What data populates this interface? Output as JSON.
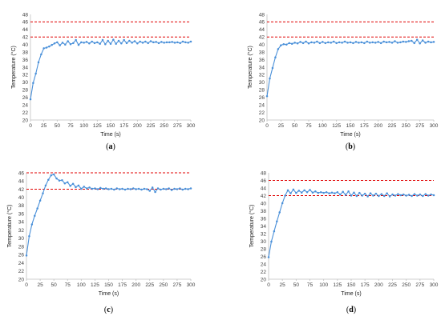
{
  "colors": {
    "series": "#4a90d9",
    "threshold": "#e00000",
    "axis": "#bfbfbf"
  },
  "chart_data": [
    {
      "type": "line",
      "panel_label": "(a)",
      "xlabel": "Time (s)",
      "ylabel": "Temperature (°C)",
      "xlim": [
        0,
        300
      ],
      "ylim": [
        20,
        48
      ],
      "xticks": [
        0,
        25,
        50,
        75,
        100,
        125,
        150,
        175,
        200,
        225,
        250,
        275,
        300
      ],
      "yticks": [
        20,
        22,
        24,
        26,
        28,
        30,
        32,
        34,
        36,
        38,
        40,
        42,
        44,
        46,
        48
      ],
      "thresholds": [
        42,
        46
      ],
      "x": [
        0,
        5,
        10,
        15,
        20,
        25,
        30,
        35,
        40,
        45,
        50,
        55,
        60,
        65,
        70,
        75,
        80,
        85,
        90,
        95,
        100,
        105,
        110,
        115,
        120,
        125,
        130,
        135,
        140,
        145,
        150,
        155,
        160,
        165,
        170,
        175,
        180,
        185,
        190,
        195,
        200,
        205,
        210,
        215,
        220,
        225,
        230,
        235,
        240,
        245,
        250,
        255,
        260,
        265,
        270,
        275,
        280,
        285,
        290,
        295,
        300
      ],
      "y": [
        25.5,
        29.8,
        32.3,
        35.3,
        37.4,
        39.0,
        39.2,
        39.5,
        39.9,
        40.3,
        40.6,
        39.8,
        40.5,
        40.0,
        40.9,
        40.1,
        40.4,
        41.2,
        39.9,
        40.6,
        40.5,
        40.7,
        40.3,
        40.8,
        40.4,
        40.6,
        40.2,
        41.2,
        40.1,
        41.0,
        40.2,
        41.3,
        40.2,
        41.0,
        40.3,
        41.2,
        40.4,
        41.0,
        40.5,
        40.9,
        40.3,
        40.8,
        40.5,
        40.8,
        40.4,
        40.9,
        40.6,
        40.7,
        40.4,
        40.7,
        40.5,
        40.6,
        40.6,
        40.7,
        40.5,
        40.6,
        40.4,
        40.8,
        40.6,
        40.5,
        40.8
      ]
    },
    {
      "type": "line",
      "panel_label": "(b)",
      "xlabel": "Time (s)",
      "ylabel": "Temperature (°C)",
      "xlim": [
        0,
        300
      ],
      "ylim": [
        20,
        48
      ],
      "xticks": [
        0,
        25,
        50,
        75,
        100,
        125,
        150,
        175,
        200,
        225,
        250,
        275,
        300
      ],
      "yticks": [
        20,
        22,
        24,
        26,
        28,
        30,
        32,
        34,
        36,
        38,
        40,
        42,
        44,
        46,
        48
      ],
      "thresholds": [
        42,
        46
      ],
      "x": [
        0,
        5,
        10,
        15,
        20,
        25,
        30,
        35,
        40,
        45,
        50,
        55,
        60,
        65,
        70,
        75,
        80,
        85,
        90,
        95,
        100,
        105,
        110,
        115,
        120,
        125,
        130,
        135,
        140,
        145,
        150,
        155,
        160,
        165,
        170,
        175,
        180,
        185,
        190,
        195,
        200,
        205,
        210,
        215,
        220,
        225,
        230,
        235,
        240,
        245,
        250,
        255,
        260,
        265,
        270,
        275,
        280,
        285,
        290,
        295,
        300
      ],
      "y": [
        26.3,
        31.0,
        33.8,
        36.6,
        38.8,
        39.8,
        40.1,
        40.0,
        40.4,
        40.2,
        40.5,
        40.3,
        40.7,
        40.4,
        40.8,
        40.3,
        40.6,
        40.5,
        40.8,
        40.4,
        40.7,
        40.4,
        40.6,
        40.5,
        40.8,
        40.4,
        40.6,
        40.5,
        40.8,
        40.5,
        40.6,
        40.4,
        40.7,
        40.5,
        40.6,
        40.4,
        40.8,
        40.5,
        40.6,
        40.5,
        40.7,
        40.4,
        40.8,
        40.6,
        40.7,
        40.5,
        40.9,
        40.5,
        40.6,
        40.8,
        40.7,
        40.9,
        41.0,
        40.4,
        41.3,
        40.3,
        41.1,
        40.5,
        40.8,
        40.6,
        40.7
      ]
    },
    {
      "type": "line",
      "panel_label": "(c)",
      "xlabel": "Time (s)",
      "ylabel": "Temperature (°C)",
      "xlim": [
        0,
        300
      ],
      "ylim": [
        20,
        46
      ],
      "xticks": [
        0,
        25,
        50,
        75,
        100,
        125,
        150,
        175,
        200,
        225,
        250,
        275,
        300
      ],
      "yticks": [
        20,
        22,
        24,
        26,
        28,
        30,
        32,
        34,
        36,
        38,
        40,
        42,
        44,
        46
      ],
      "thresholds": [
        42,
        46
      ],
      "x": [
        0,
        5,
        10,
        15,
        20,
        25,
        30,
        35,
        40,
        45,
        50,
        55,
        60,
        65,
        70,
        75,
        80,
        85,
        90,
        95,
        100,
        105,
        110,
        115,
        120,
        125,
        130,
        135,
        140,
        145,
        150,
        155,
        160,
        165,
        170,
        175,
        180,
        185,
        190,
        195,
        200,
        205,
        210,
        215,
        220,
        225,
        230,
        235,
        240,
        245,
        250,
        255,
        260,
        265,
        270,
        275,
        280,
        285,
        290,
        295,
        300
      ],
      "y": [
        25.8,
        30.5,
        33.4,
        35.5,
        37.3,
        39.2,
        41.0,
        42.9,
        44.3,
        45.4,
        45.6,
        44.6,
        44.1,
        44.2,
        43.4,
        43.7,
        42.8,
        43.3,
        42.5,
        42.9,
        42.1,
        42.6,
        42.2,
        42.4,
        42.1,
        42.2,
        42.0,
        42.3,
        42.1,
        42.2,
        42.0,
        42.1,
        41.9,
        42.2,
        42.0,
        42.1,
        41.9,
        42.1,
        42.0,
        42.2,
        42.0,
        42.1,
        41.9,
        42.1,
        42.0,
        41.6,
        42.4,
        41.3,
        42.2,
        41.9,
        42.1,
        42.0,
        42.2,
        41.8,
        42.1,
        42.0,
        42.2,
        41.9,
        42.1,
        42.0,
        42.2
      ]
    },
    {
      "type": "line",
      "panel_label": "(d)",
      "xlabel": "Time (s)",
      "ylabel": "Temperature (°C)",
      "xlim": [
        0,
        300
      ],
      "ylim": [
        20,
        48
      ],
      "xticks": [
        0,
        25,
        50,
        75,
        100,
        125,
        150,
        175,
        200,
        225,
        250,
        275,
        300
      ],
      "yticks": [
        20,
        22,
        24,
        26,
        28,
        30,
        32,
        34,
        36,
        38,
        40,
        42,
        44,
        46,
        48
      ],
      "thresholds": [
        42,
        46
      ],
      "x": [
        0,
        5,
        10,
        15,
        20,
        25,
        30,
        35,
        40,
        45,
        50,
        55,
        60,
        65,
        70,
        75,
        80,
        85,
        90,
        95,
        100,
        105,
        110,
        115,
        120,
        125,
        130,
        135,
        140,
        145,
        150,
        155,
        160,
        165,
        170,
        175,
        180,
        185,
        190,
        195,
        200,
        205,
        210,
        215,
        220,
        225,
        230,
        235,
        240,
        245,
        250,
        255,
        260,
        265,
        270,
        275,
        280,
        285,
        290,
        295,
        300
      ],
      "y": [
        25.8,
        29.9,
        32.6,
        35.2,
        37.6,
        40.0,
        42.0,
        43.4,
        42.6,
        43.6,
        42.7,
        43.3,
        42.8,
        43.4,
        42.9,
        43.5,
        42.8,
        43.1,
        42.7,
        42.9,
        42.7,
        42.9,
        42.6,
        42.8,
        42.6,
        42.9,
        42.3,
        43.0,
        42.2,
        43.1,
        42.0,
        42.8,
        41.9,
        42.7,
        42.0,
        42.5,
        41.8,
        42.6,
        42.0,
        42.5,
        41.9,
        42.4,
        41.9,
        42.6,
        41.8,
        42.3,
        42.0,
        42.4,
        42.1,
        42.3,
        42.0,
        42.2,
        41.9,
        42.4,
        42.0,
        42.3,
        41.9,
        42.4,
        42.0,
        42.3,
        42.1
      ]
    }
  ]
}
